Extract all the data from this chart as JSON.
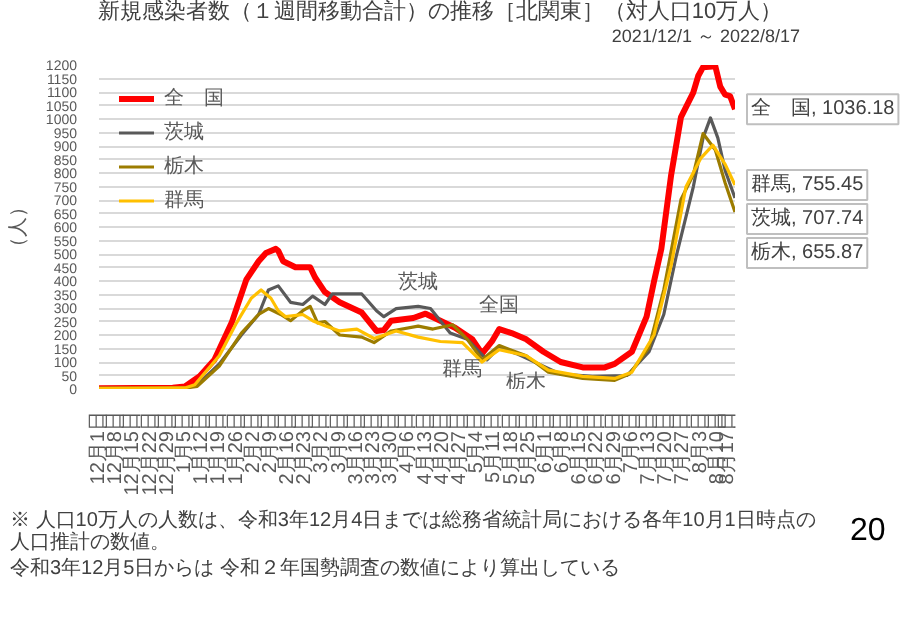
{
  "chart_data": {
    "type": "line",
    "title": "新規感染者数（１週間移動合計）の推移［北関東］（対人口10万人）",
    "subtitle": "2021/12/1 ～ 2022/8/17",
    "ylabel": "（人）",
    "xlim": [
      "2021-12-01",
      "2022-08-17"
    ],
    "ylim": [
      0,
      1200
    ],
    "yticks": [
      0,
      50,
      100,
      150,
      200,
      250,
      300,
      350,
      400,
      450,
      500,
      550,
      600,
      650,
      700,
      750,
      800,
      850,
      900,
      950,
      1000,
      1050,
      1100,
      1150,
      1200
    ],
    "xticks": [
      {
        "value": "2021-12-01",
        "label": "12月1日"
      },
      {
        "value": "2021-12-08",
        "label": "12月8日"
      },
      {
        "value": "2021-12-15",
        "label": "12月15日"
      },
      {
        "value": "2021-12-22",
        "label": "12月22日"
      },
      {
        "value": "2021-12-29",
        "label": "12月29日"
      },
      {
        "value": "2022-01-05",
        "label": "1月5日"
      },
      {
        "value": "2022-01-12",
        "label": "1月12日"
      },
      {
        "value": "2022-01-19",
        "label": "1月19日"
      },
      {
        "value": "2022-01-26",
        "label": "1月26日"
      },
      {
        "value": "2022-02-02",
        "label": "2月2日"
      },
      {
        "value": "2022-02-09",
        "label": "2月9日"
      },
      {
        "value": "2022-02-16",
        "label": "2月16日"
      },
      {
        "value": "2022-02-23",
        "label": "2月23日"
      },
      {
        "value": "2022-03-02",
        "label": "3月2日"
      },
      {
        "value": "2022-03-09",
        "label": "3月9日"
      },
      {
        "value": "2022-03-16",
        "label": "3月16日"
      },
      {
        "value": "2022-03-23",
        "label": "3月23日"
      },
      {
        "value": "2022-03-30",
        "label": "3月30日"
      },
      {
        "value": "2022-04-06",
        "label": "4月6日"
      },
      {
        "value": "2022-04-13",
        "label": "4月13日"
      },
      {
        "value": "2022-04-20",
        "label": "4月20日"
      },
      {
        "value": "2022-04-27",
        "label": "4月27日"
      },
      {
        "value": "2022-05-04",
        "label": "5月4日"
      },
      {
        "value": "2022-05-11",
        "label": "5月11日"
      },
      {
        "value": "2022-05-18",
        "label": "5月18日"
      },
      {
        "value": "2022-05-25",
        "label": "5月25日"
      },
      {
        "value": "2022-06-01",
        "label": "6月1日"
      },
      {
        "value": "2022-06-08",
        "label": "6月8日"
      },
      {
        "value": "2022-06-15",
        "label": "6月15日"
      },
      {
        "value": "2022-06-22",
        "label": "6月22日"
      },
      {
        "value": "2022-06-29",
        "label": "6月29日"
      },
      {
        "value": "2022-07-06",
        "label": "7月6日"
      },
      {
        "value": "2022-07-13",
        "label": "7月13日"
      },
      {
        "value": "2022-07-20",
        "label": "7月20日"
      },
      {
        "value": "2022-07-27",
        "label": "7月27日"
      },
      {
        "value": "2022-08-03",
        "label": "8月3日"
      },
      {
        "value": "2022-08-10",
        "label": "8月10日"
      },
      {
        "value": "2022-08-17",
        "label": "8月17日"
      }
    ],
    "grid": "y",
    "legend": "top left",
    "series": [
      {
        "name": "全　国",
        "color": "#ff0000",
        "x": [
          "2021-12-01",
          "2021-12-31",
          "2022-01-05",
          "2022-01-11",
          "2022-01-17",
          "2022-01-24",
          "2022-01-30",
          "2022-02-04",
          "2022-02-07",
          "2022-02-11",
          "2022-02-12",
          "2022-02-14",
          "2022-02-19",
          "2022-02-25",
          "2022-02-27",
          "2022-03-03",
          "2022-03-09",
          "2022-03-18",
          "2022-03-24",
          "2022-03-27",
          "2022-03-30",
          "2022-04-08",
          "2022-04-13",
          "2022-04-19",
          "2022-04-25",
          "2022-05-02",
          "2022-05-06",
          "2022-05-10",
          "2022-05-13",
          "2022-05-18",
          "2022-05-24",
          "2022-05-31",
          "2022-06-07",
          "2022-06-16",
          "2022-06-25",
          "2022-06-29",
          "2022-07-06",
          "2022-07-12",
          "2022-07-15",
          "2022-07-18",
          "2022-07-22",
          "2022-07-26",
          "2022-07-31",
          "2022-08-02",
          "2022-08-04",
          "2022-08-09",
          "2022-08-11",
          "2022-08-13",
          "2022-08-15",
          "2022-08-17"
        ],
        "values": [
          3,
          5,
          9,
          47,
          108,
          245,
          405,
          473,
          504,
          519,
          512,
          473,
          451,
          451,
          413,
          359,
          321,
          283,
          215,
          218,
          253,
          263,
          279,
          253,
          227,
          184,
          131,
          176,
          222,
          207,
          184,
          138,
          100,
          80,
          80,
          93,
          138,
          268,
          398,
          519,
          793,
          1007,
          1098,
          1159,
          1192,
          1195,
          1120,
          1090,
          1085,
          1036.18
        ]
      },
      {
        "name": "茨城",
        "color": "#595959",
        "x": [
          "2021-12-01",
          "2022-01-05",
          "2022-01-10",
          "2022-01-19",
          "2022-01-28",
          "2022-02-04",
          "2022-02-08",
          "2022-02-12",
          "2022-02-17",
          "2022-02-22",
          "2022-02-26",
          "2022-03-03",
          "2022-03-06",
          "2022-03-18",
          "2022-03-24",
          "2022-03-27",
          "2022-04-01",
          "2022-04-10",
          "2022-04-15",
          "2022-04-23",
          "2022-04-30",
          "2022-05-08",
          "2022-05-13",
          "2022-05-20",
          "2022-05-29",
          "2022-06-07",
          "2022-06-20",
          "2022-07-04",
          "2022-07-13",
          "2022-07-19",
          "2022-07-24",
          "2022-07-31",
          "2022-08-04",
          "2022-08-07",
          "2022-08-10",
          "2022-08-13",
          "2022-08-17"
        ],
        "values": [
          2,
          3,
          15,
          93,
          200,
          276,
          367,
          382,
          321,
          313,
          344,
          313,
          352,
          352,
          290,
          268,
          298,
          306,
          298,
          207,
          184,
          108,
          154,
          131,
          93,
          55,
          47,
          50,
          138,
          276,
          489,
          748,
          930,
          1004,
          930,
          809,
          707.74
        ]
      },
      {
        "name": "栃木",
        "color": "#9c7c00",
        "x": [
          "2021-12-01",
          "2022-01-05",
          "2022-01-10",
          "2022-01-19",
          "2022-01-28",
          "2022-02-04",
          "2022-02-08",
          "2022-02-13",
          "2022-02-17",
          "2022-02-22",
          "2022-02-25",
          "2022-02-28",
          "2022-03-03",
          "2022-03-09",
          "2022-03-18",
          "2022-03-23",
          "2022-03-30",
          "2022-04-10",
          "2022-04-16",
          "2022-04-24",
          "2022-04-30",
          "2022-05-06",
          "2022-05-13",
          "2022-05-24",
          "2022-06-02",
          "2022-06-16",
          "2022-06-29",
          "2022-07-05",
          "2022-07-13",
          "2022-07-19",
          "2022-07-26",
          "2022-07-31",
          "2022-08-04",
          "2022-08-09",
          "2022-08-13",
          "2022-08-17"
        ],
        "values": [
          2,
          3,
          10,
          85,
          207,
          276,
          298,
          276,
          253,
          290,
          306,
          245,
          250,
          200,
          192,
          172,
          215,
          233,
          222,
          238,
          184,
          108,
          161,
          123,
          62,
          39,
          32,
          55,
          154,
          367,
          702,
          793,
          946,
          885,
          763,
          655.87
        ]
      },
      {
        "name": "群馬",
        "color": "#ffc000",
        "x": [
          "2021-12-01",
          "2022-01-05",
          "2022-01-09",
          "2022-01-19",
          "2022-01-26",
          "2022-02-01",
          "2022-02-05",
          "2022-02-09",
          "2022-02-12",
          "2022-02-15",
          "2022-02-22",
          "2022-02-26",
          "2022-03-03",
          "2022-03-09",
          "2022-03-16",
          "2022-03-23",
          "2022-04-01",
          "2022-04-10",
          "2022-04-19",
          "2022-04-28",
          "2022-05-06",
          "2022-05-13",
          "2022-05-24",
          "2022-06-02",
          "2022-06-16",
          "2022-06-29",
          "2022-07-06",
          "2022-07-15",
          "2022-07-22",
          "2022-07-28",
          "2022-08-03",
          "2022-08-08",
          "2022-08-13",
          "2022-08-17"
        ],
        "values": [
          2,
          4,
          16,
          123,
          245,
          336,
          367,
          336,
          290,
          268,
          276,
          253,
          234,
          215,
          222,
          187,
          215,
          192,
          176,
          172,
          100,
          146,
          123,
          70,
          47,
          39,
          62,
          200,
          458,
          748,
          854,
          903,
          832,
          755.45
        ]
      }
    ],
    "annotations": [
      {
        "text": "全　国, 1036.18",
        "x": "2022-08-17",
        "y": 1036.18
      },
      {
        "text": "群馬, 755.45",
        "x": "2022-08-17",
        "y": 755.45
      },
      {
        "text": "茨城, 707.74",
        "x": "2022-08-17",
        "y": 707.74
      },
      {
        "text": "栃木, 655.87",
        "x": "2022-08-17",
        "y": 655.87
      },
      {
        "text": "茨城",
        "x": "2022-04-10",
        "y": 306
      },
      {
        "text": "全国",
        "x": "2022-05-13",
        "y": 222
      },
      {
        "text": "群馬",
        "x": "2022-04-28",
        "y": 172
      },
      {
        "text": "栃木",
        "x": "2022-05-24",
        "y": 123
      },
      "※ 人口10万人の人数は、令和3年12月4日までは総務省統計局における各年10月1日時点の人口推計の数値。",
      "令和3年12月5日からは 令和２年国勢調査の数値により算出している",
      "20"
    ]
  }
}
